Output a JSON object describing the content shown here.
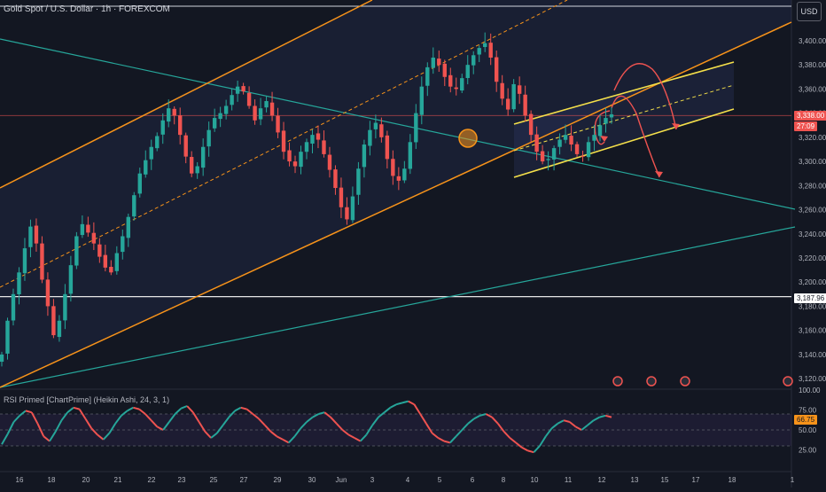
{
  "header": {
    "title": "Gold Spot / U.S. Dollar · 1h · FOREXCOM",
    "currency": "USD",
    "rsi_title": "RSI Primed [ChartPrime] (Heikin Ashi, 24, 3, 1)"
  },
  "price_tags": {
    "current_price": "3,338.00",
    "countdown": "27:09",
    "level_price": "3,187.96",
    "rsi_value": "66.75"
  },
  "colors": {
    "background": "#131722",
    "bull": "#26a69a",
    "bear": "#ef5350",
    "channel_orange": "#f7931a",
    "channel_yellow": "#f5e04a",
    "teal_line": "#26a69a",
    "arrow_red": "#ef5350"
  },
  "chart_data": [
    {
      "type": "candlestick",
      "symbol": "Gold Spot / U.S. Dollar",
      "timeframe": "1h",
      "x_tick_labels": [
        "16",
        "18",
        "20",
        "21",
        "22",
        "23",
        "25",
        "27",
        "29",
        "30",
        "Jun",
        "3",
        "4",
        "5",
        "6",
        "8",
        "10",
        "11",
        "12",
        "13",
        "15",
        "17",
        "18",
        "1"
      ],
      "y_tick_labels": [
        "3,120.00",
        "3,140.00",
        "3,160.00",
        "3,180.00",
        "3,200.00",
        "3,220.00",
        "3,240.00",
        "3,260.00",
        "3,280.00",
        "3,300.00",
        "3,320.00",
        "3,340.00",
        "3,360.00",
        "3,380.00",
        "3,400.00"
      ],
      "ylim": [
        3112,
        3422
      ],
      "series": [
        {
          "close": [
            3140,
            3168,
            3190,
            3208,
            3228,
            3246,
            3232,
            3202,
            3180,
            3156,
            3168,
            3190,
            3214,
            3238,
            3248,
            3241,
            3232,
            3221,
            3212,
            3208,
            3224,
            3238,
            3254,
            3272,
            3290,
            3301,
            3312,
            3321,
            3334,
            3344,
            3338,
            3322,
            3304,
            3290,
            3296,
            3312,
            3326,
            3336,
            3340,
            3346,
            3355,
            3362,
            3358,
            3346,
            3334,
            3344,
            3350,
            3338,
            3324,
            3308,
            3300,
            3296,
            3308,
            3316,
            3322,
            3318,
            3306,
            3293,
            3278,
            3262,
            3252,
            3271,
            3294,
            3314,
            3326,
            3332,
            3320,
            3302,
            3288,
            3284,
            3294,
            3316,
            3340,
            3362,
            3378,
            3386,
            3380,
            3370,
            3362,
            3360,
            3369,
            3380,
            3388,
            3394,
            3398,
            3386,
            3366,
            3352,
            3343,
            3364,
            3356,
            3338,
            3322,
            3308,
            3300,
            3302,
            3311,
            3318,
            3322,
            3314,
            3306,
            3304,
            3316,
            3322,
            3330,
            3336,
            3339
          ]
        }
      ],
      "level_line": 3187.96,
      "current_price": 3338.0,
      "annotations": [
        "orange ascending channel",
        "yellow ascending channel",
        "teal descending trendline",
        "teal ascending trendline",
        "red projection arrows"
      ]
    },
    {
      "type": "line",
      "title": "RSI Primed [ChartPrime] (Heikin Ashi, 24, 3, 1)",
      "y_tick_labels": [
        "100.00",
        "75.00",
        "50.00",
        "25.00"
      ],
      "ylim": [
        0,
        100
      ],
      "levels": [
        70,
        50,
        30
      ],
      "series": [
        {
          "name": "RSI",
          "values": [
            32,
            45,
            60,
            68,
            74,
            72,
            58,
            42,
            36,
            48,
            62,
            72,
            78,
            76,
            64,
            52,
            44,
            38,
            46,
            58,
            68,
            74,
            78,
            76,
            70,
            62,
            54,
            50,
            60,
            70,
            77,
            80,
            72,
            60,
            48,
            40,
            46,
            56,
            66,
            74,
            78,
            76,
            70,
            64,
            56,
            48,
            42,
            38,
            34,
            42,
            52,
            60,
            66,
            70,
            72,
            66,
            58,
            50,
            44,
            40,
            36,
            44,
            56,
            66,
            72,
            78,
            82,
            84,
            86,
            82,
            70,
            58,
            46,
            40,
            36,
            34,
            42,
            50,
            58,
            64,
            68,
            70,
            66,
            58,
            48,
            40,
            34,
            28,
            24,
            22,
            30,
            42,
            52,
            58,
            62,
            60,
            54,
            50,
            56,
            62,
            66,
            68,
            66
          ]
        }
      ]
    }
  ]
}
